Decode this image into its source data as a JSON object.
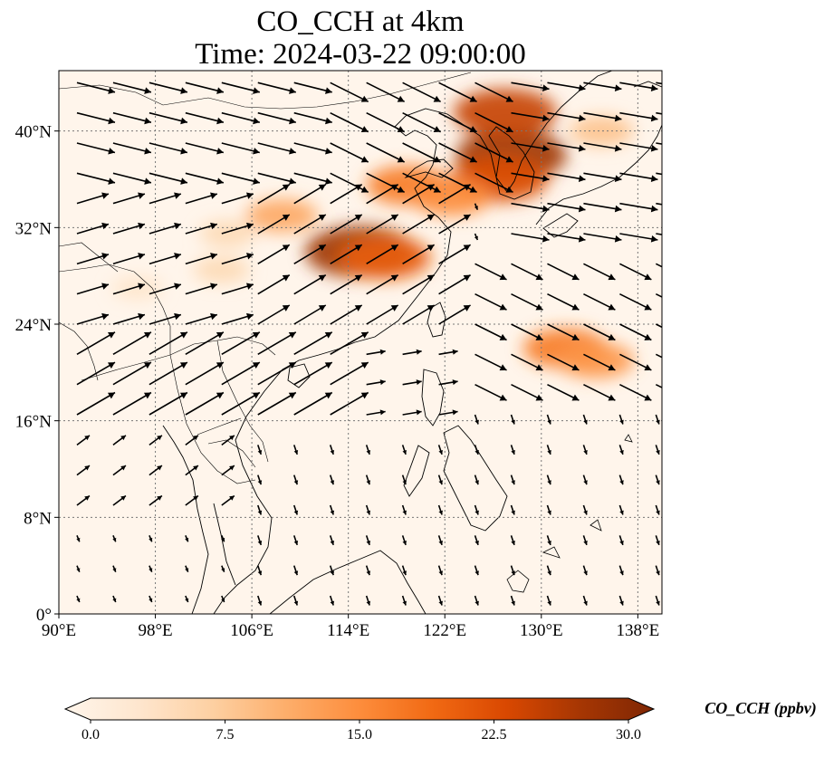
{
  "figure": {
    "title_line1": "CO_CCH at 4km",
    "title_line2": "Time: 2024-03-22 09:00:00"
  },
  "map": {
    "lon_range": [
      90,
      140
    ],
    "lat_range": [
      0,
      45
    ],
    "lon_ticks": [
      {
        "value": 90,
        "label": "90°E"
      },
      {
        "value": 98,
        "label": "98°E"
      },
      {
        "value": 106,
        "label": "106°E"
      },
      {
        "value": 114,
        "label": "114°E"
      },
      {
        "value": 122,
        "label": "122°E"
      },
      {
        "value": 130,
        "label": "130°E"
      },
      {
        "value": 138,
        "label": "138°E"
      }
    ],
    "lat_ticks": [
      {
        "value": 0,
        "label": "0°"
      },
      {
        "value": 8,
        "label": "8°N"
      },
      {
        "value": 16,
        "label": "16°N"
      },
      {
        "value": 24,
        "label": "24°N"
      },
      {
        "value": 32,
        "label": "32°N"
      },
      {
        "value": 40,
        "label": "40°N"
      }
    ],
    "gridlines": true,
    "background_color": "#fff5eb",
    "plumes": [
      {
        "lon": 127.5,
        "lat": 38.0,
        "value": 27
      },
      {
        "lon": 127.0,
        "lat": 41.5,
        "value": 24
      },
      {
        "lon": 126.5,
        "lat": 36.0,
        "value": 22
      },
      {
        "lon": 115.0,
        "lat": 30.0,
        "value": 27
      },
      {
        "lon": 117.0,
        "lat": 29.5,
        "value": 20
      },
      {
        "lon": 119.0,
        "lat": 35.5,
        "value": 17
      },
      {
        "lon": 122.5,
        "lat": 34.5,
        "value": 15
      },
      {
        "lon": 132.0,
        "lat": 22.0,
        "value": 17
      },
      {
        "lon": 134.5,
        "lat": 21.0,
        "value": 14
      },
      {
        "lon": 108.5,
        "lat": 33.0,
        "value": 12
      },
      {
        "lon": 104.0,
        "lat": 31.5,
        "value": 6
      },
      {
        "lon": 135.0,
        "lat": 40.0,
        "value": 9
      },
      {
        "lon": 96.5,
        "lat": 27.0,
        "value": 4
      },
      {
        "lon": 103.5,
        "lat": 28.5,
        "value": 6
      }
    ],
    "wind_regions": [
      {
        "lon": [
          90,
          112
        ],
        "lat": [
          36,
          45
        ],
        "u": 6,
        "v": -1.5
      },
      {
        "lon": [
          112,
          126
        ],
        "lat": [
          36,
          45
        ],
        "u": 6,
        "v": -3
      },
      {
        "lon": [
          126,
          140
        ],
        "lat": [
          30,
          45
        ],
        "u": 6,
        "v": -1
      },
      {
        "lon": [
          90,
          104
        ],
        "lat": [
          24,
          36
        ],
        "u": 5,
        "v": 1.5
      },
      {
        "lon": [
          104,
          122
        ],
        "lat": [
          24,
          36
        ],
        "u": 5,
        "v": 3
      },
      {
        "lon": [
          122,
          140
        ],
        "lat": [
          18,
          30
        ],
        "u": 5,
        "v": -2.5
      },
      {
        "lon": [
          90,
          114
        ],
        "lat": [
          15,
          24
        ],
        "u": 6,
        "v": 3.5
      },
      {
        "lon": [
          114,
          122
        ],
        "lat": [
          16,
          24
        ],
        "u": 3,
        "v": 0.5
      },
      {
        "lon": [
          90,
          106
        ],
        "lat": [
          8,
          15
        ],
        "u": 2,
        "v": 1.5
      },
      {
        "lon": [
          106,
          140
        ],
        "lat": [
          0,
          18
        ],
        "u": 0.5,
        "v": -1.5
      }
    ]
  },
  "colorbar": {
    "cmap": [
      "#fff5eb",
      "#fee6ce",
      "#fdd0a2",
      "#fdae6b",
      "#fd8d3c",
      "#f16913",
      "#d94801",
      "#a63603",
      "#7f2704"
    ],
    "extend": "both",
    "vmin": 0,
    "vmax": 30,
    "ticks": [
      {
        "value": 0,
        "label": "0.0"
      },
      {
        "value": 7.5,
        "label": "7.5"
      },
      {
        "value": 15,
        "label": "15.0"
      },
      {
        "value": 22.5,
        "label": "22.5"
      },
      {
        "value": 30,
        "label": "30.0"
      }
    ],
    "label": "CO_CCH (ppbv)"
  }
}
